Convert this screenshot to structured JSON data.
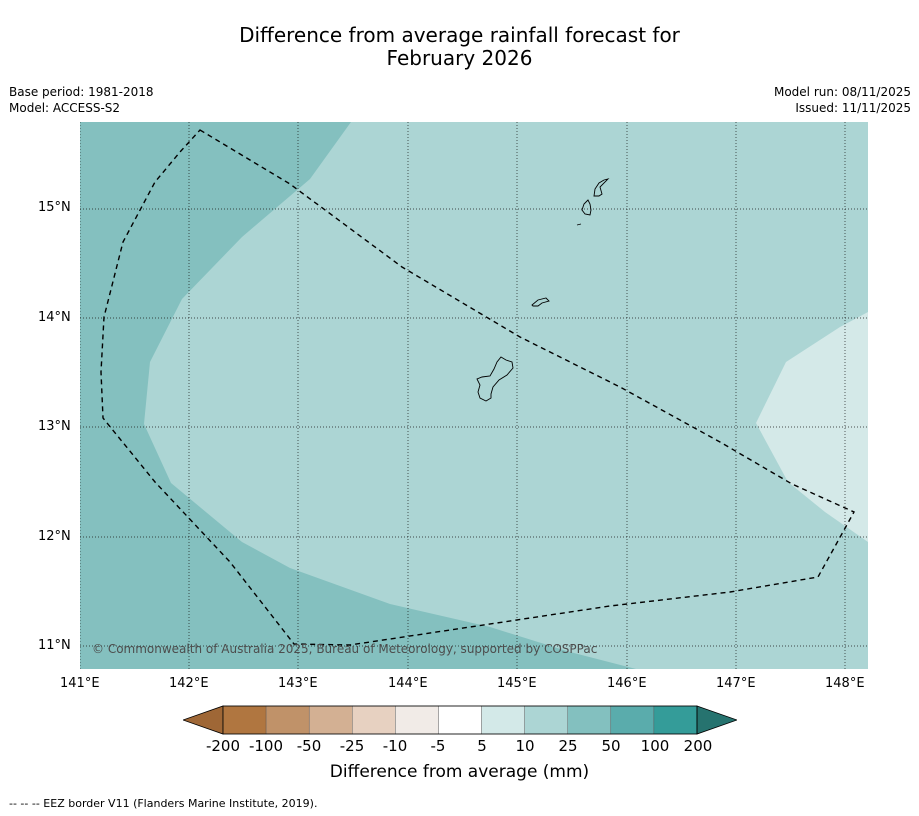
{
  "title_line1": "Difference from average rainfall forecast for",
  "title_line2": "February 2026",
  "base_period": "Base period: 1981-2018",
  "model": "Model: ACCESS-S2",
  "model_run": "Model run: 08/11/2025",
  "issued": "Issued: 11/11/2025",
  "copyright": "© Commonwealth of Australia 2025, Bureau of Meteorology, supported by COSPPac",
  "lat_labels": [
    "15°N",
    "14°N",
    "13°N",
    "12°N",
    "11°N"
  ],
  "lon_labels": [
    "141°E",
    "142°E",
    "143°E",
    "144°E",
    "145°E",
    "146°E",
    "147°E",
    "148°E"
  ],
  "colorbar": {
    "tick_labels": [
      "-200",
      "-100",
      "-50",
      "-25",
      "-10",
      "-5",
      "5",
      "10",
      "25",
      "50",
      "100",
      "200"
    ],
    "colors": [
      "#9f6736",
      "#b07640",
      "#c09269",
      "#d3b093",
      "#e7d1c1",
      "#f1ebe7",
      "#ffffff",
      "#d3e9e8",
      "#acd5d4",
      "#83c0bf",
      "#5aacac",
      "#349c99",
      "#26736f"
    ],
    "label": "Difference from average (mm)"
  },
  "map": {
    "zone_colors": {
      "band_50_100": "#84c0bf",
      "band_25_50": "#acd5d4",
      "band_10_25": "#d4e9e8"
    }
  },
  "footnote": "--  --  -- EEZ border V11 (Flanders Marine Institute, 2019)."
}
